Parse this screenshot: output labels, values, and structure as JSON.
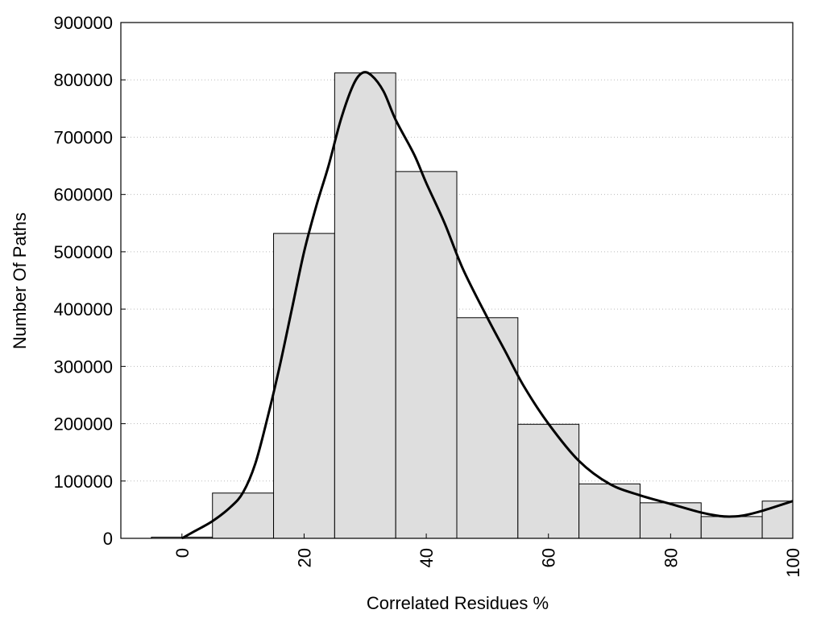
{
  "chart_data": {
    "type": "bar",
    "title": "",
    "xlabel": "Correlated Residues %",
    "ylabel": "Number Of Paths",
    "xlim": [
      -10,
      100
    ],
    "ylim": [
      0,
      900000
    ],
    "grid": "horizontal-dotted",
    "legend": "none",
    "x_ticks": [
      0,
      20,
      40,
      60,
      80,
      100
    ],
    "x_tick_labels": [
      "0",
      "20",
      "40",
      "60",
      "80",
      "100"
    ],
    "y_ticks": [
      0,
      100000,
      200000,
      300000,
      400000,
      500000,
      600000,
      700000,
      800000,
      900000
    ],
    "y_tick_labels": [
      "0",
      "100000",
      "200000",
      "300000",
      "400000",
      "500000",
      "600000",
      "700000",
      "800000",
      "900000"
    ],
    "bin_width": 10,
    "bins": [
      {
        "center": 0,
        "value": 2000
      },
      {
        "center": 10,
        "value": 79000
      },
      {
        "center": 20,
        "value": 532000
      },
      {
        "center": 30,
        "value": 812000
      },
      {
        "center": 40,
        "value": 640000
      },
      {
        "center": 50,
        "value": 385000
      },
      {
        "center": 60,
        "value": 199000
      },
      {
        "center": 70,
        "value": 95000
      },
      {
        "center": 80,
        "value": 62000
      },
      {
        "center": 90,
        "value": 38000
      },
      {
        "center": 100,
        "value": 65000
      }
    ],
    "curve": {
      "x": [
        0,
        2,
        5,
        8,
        10,
        12,
        14,
        16,
        18,
        20,
        22,
        24,
        26,
        28,
        29.5,
        31,
        33,
        35,
        38,
        40,
        43,
        46,
        50,
        53,
        56,
        60,
        65,
        70,
        75,
        80,
        85,
        88,
        90,
        92,
        95,
        100
      ],
      "y": [
        0,
        12000,
        30000,
        55000,
        80000,
        130000,
        210000,
        300000,
        400000,
        500000,
        580000,
        650000,
        730000,
        790000,
        812000,
        808000,
        780000,
        730000,
        670000,
        620000,
        550000,
        470000,
        385000,
        325000,
        265000,
        200000,
        135000,
        95000,
        75000,
        60000,
        45000,
        39000,
        38000,
        40000,
        48000,
        65000
      ]
    },
    "colors": {
      "bar_fill": "#dedede",
      "bar_stroke": "#000000",
      "curve": "#000000",
      "grid": "#bbbbbb"
    }
  }
}
